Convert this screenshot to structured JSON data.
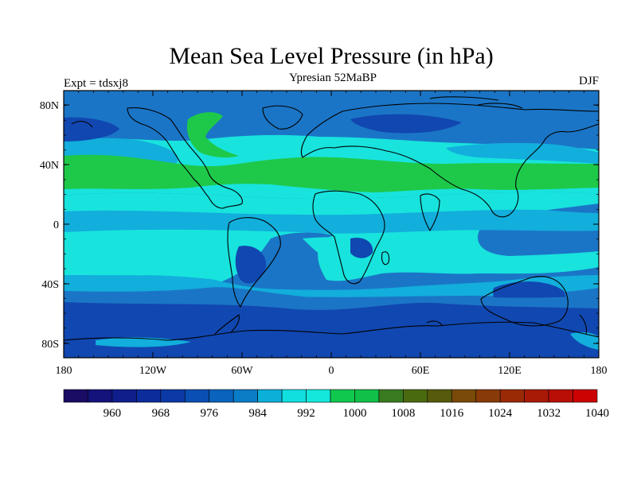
{
  "title": "Mean Sea Level Pressure (in hPa)",
  "left_label": "Expt = tdsxj8",
  "center_label": "Ypresian  52MaBP",
  "right_label": "DJF",
  "y_ticks": [
    "80N",
    "40N",
    "0",
    "40S",
    "80S"
  ],
  "x_ticks": [
    "180",
    "120W",
    "60W",
    "0",
    "60E",
    "120E",
    "180"
  ],
  "colorbar": {
    "colors": [
      "#1a0b64",
      "#14137c",
      "#101e8c",
      "#0d2c9c",
      "#0b3aa6",
      "#0a4fb4",
      "#0a63bc",
      "#0b7cc6",
      "#0bb0d8",
      "#11dede",
      "#14e8dc",
      "#10c84e",
      "#10c048",
      "#3a7a20",
      "#4a6a10",
      "#565a0c",
      "#7a4a0a",
      "#883a08",
      "#9a2a06",
      "#a81a06",
      "#b80e06",
      "#cc0202"
    ],
    "labels": [
      "960",
      "968",
      "976",
      "984",
      "992",
      "1000",
      "1008",
      "1016",
      "1024",
      "1032",
      "1040"
    ]
  },
  "colors": {
    "deep_blue": "#1147b0",
    "mid_blue": "#1b75c6",
    "light_blue": "#12aedc",
    "cyan": "#18e3dd",
    "green": "#1ec94a",
    "coast": "#000000"
  }
}
